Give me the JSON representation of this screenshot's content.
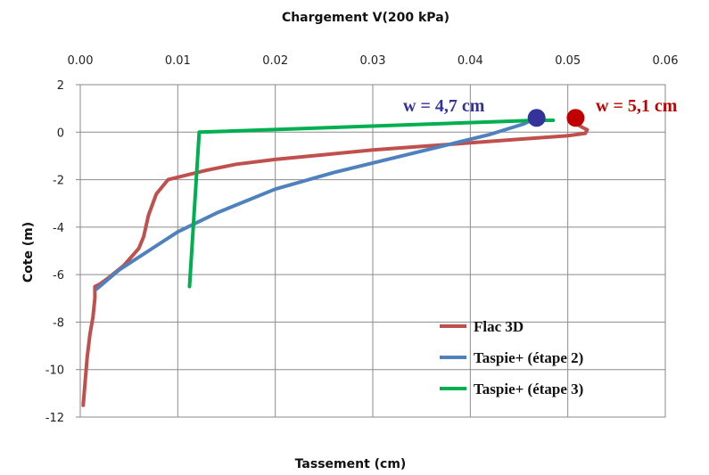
{
  "chart_data": {
    "type": "line",
    "title": "Chargement V(200 kPa)",
    "xlabel": "Tassement (cm)",
    "ylabel": "Cote (m)",
    "xlim": [
      0,
      0.06
    ],
    "ylim": [
      -12,
      2
    ],
    "xticks": [
      "0.00",
      "0.01",
      "0.02",
      "0.03",
      "0.04",
      "0.05",
      "0.06"
    ],
    "yticks": [
      "2",
      "0",
      "-2",
      "-4",
      "-6",
      "-8",
      "-10",
      "-12"
    ],
    "x_axis_position": "top",
    "grid": true,
    "legend_position": "bottom-right",
    "series": [
      {
        "name": "Flac 3D",
        "color": "#c0504d",
        "points": [
          [
            0.0003,
            -11.5
          ],
          [
            0.0005,
            -10.5
          ],
          [
            0.0007,
            -9.5
          ],
          [
            0.001,
            -8.5
          ],
          [
            0.0013,
            -7.8
          ],
          [
            0.0015,
            -7.0
          ],
          [
            0.0015,
            -6.5
          ],
          [
            0.002,
            -6.4
          ],
          [
            0.003,
            -6.1
          ],
          [
            0.0045,
            -5.6
          ],
          [
            0.006,
            -4.9
          ],
          [
            0.0065,
            -4.4
          ],
          [
            0.007,
            -3.5
          ],
          [
            0.0078,
            -2.6
          ],
          [
            0.009,
            -2.0
          ],
          [
            0.011,
            -1.8
          ],
          [
            0.013,
            -1.6
          ],
          [
            0.016,
            -1.35
          ],
          [
            0.02,
            -1.15
          ],
          [
            0.025,
            -0.95
          ],
          [
            0.03,
            -0.75
          ],
          [
            0.035,
            -0.6
          ],
          [
            0.04,
            -0.45
          ],
          [
            0.045,
            -0.3
          ],
          [
            0.05,
            -0.15
          ],
          [
            0.0518,
            -0.05
          ],
          [
            0.052,
            0.1
          ],
          [
            0.0515,
            0.2
          ],
          [
            0.0505,
            0.45
          ],
          [
            0.0505,
            0.65
          ]
        ]
      },
      {
        "name": "Taspie+ (étape 2)",
        "color": "#4f81bd",
        "points": [
          [
            0.0017,
            -6.6
          ],
          [
            0.004,
            -5.8
          ],
          [
            0.007,
            -5.0
          ],
          [
            0.01,
            -4.2
          ],
          [
            0.014,
            -3.4
          ],
          [
            0.02,
            -2.4
          ],
          [
            0.026,
            -1.7
          ],
          [
            0.032,
            -1.1
          ],
          [
            0.037,
            -0.6
          ],
          [
            0.042,
            -0.1
          ],
          [
            0.0455,
            0.35
          ],
          [
            0.0468,
            0.6
          ]
        ]
      },
      {
        "name": "Taspie+ (étape 3)",
        "color": "#00b050",
        "points": [
          [
            0.0112,
            -6.5
          ],
          [
            0.0122,
            0.0
          ],
          [
            0.0468,
            0.5
          ],
          [
            0.0485,
            0.5
          ]
        ]
      }
    ],
    "markers": [
      {
        "x": 0.0468,
        "y": 0.6,
        "color": "#333399"
      },
      {
        "x": 0.0508,
        "y": 0.6,
        "color": "#c00000"
      }
    ],
    "annotations": [
      {
        "text": "w = 4,7 cm",
        "color": "#333399"
      },
      {
        "text": "w = 5,1 cm",
        "color": "#c00000"
      }
    ]
  }
}
